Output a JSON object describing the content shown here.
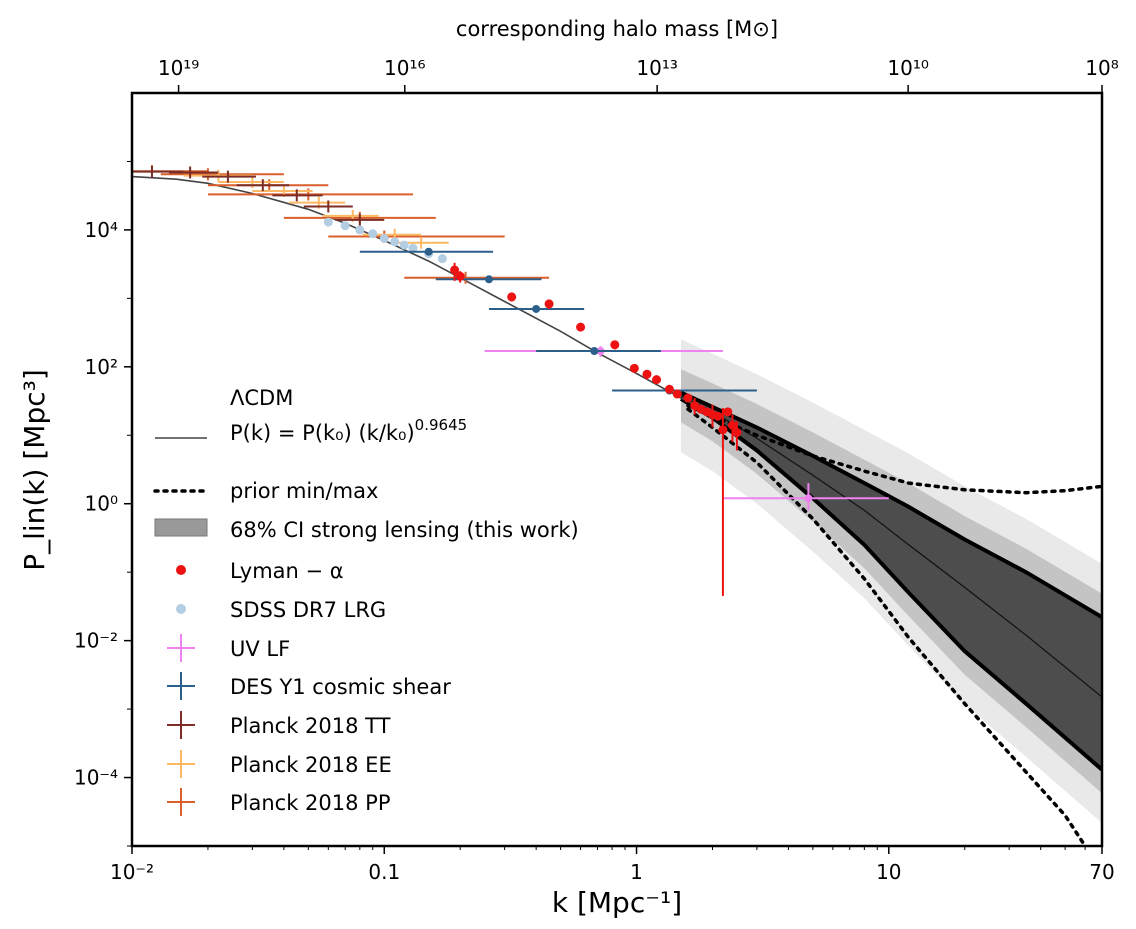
{
  "chart_data": {
    "type": "scatter",
    "title": "",
    "xlabel": "k [Mpc⁻¹]",
    "ylabel": "P_lin(k) [Mpc³]",
    "top_xlabel": "corresponding halo mass [M⊙]",
    "xscale": "log",
    "yscale": "log",
    "xlim": [
      0.01,
      70
    ],
    "ylim": [
      1e-05,
      1000000.0
    ],
    "x_ticks": [
      {
        "value": 0.01,
        "label": "10⁻²"
      },
      {
        "value": 0.1,
        "label": "0.1"
      },
      {
        "value": 1,
        "label": "1"
      },
      {
        "value": 10,
        "label": "10"
      },
      {
        "value": 70,
        "label": "70"
      }
    ],
    "y_ticks": [
      {
        "value": 0.0001,
        "label": "10⁻⁴"
      },
      {
        "value": 0.01,
        "label": "10⁻²"
      },
      {
        "value": 1,
        "label": "10⁰"
      },
      {
        "value": 100,
        "label": "10²"
      },
      {
        "value": 10000,
        "label": "10⁴"
      }
    ],
    "top_ticks": [
      {
        "k": 0.0153,
        "label": "10¹⁹"
      },
      {
        "k": 0.1206,
        "label": "10¹⁶"
      },
      {
        "k": 1.207,
        "label": "10¹³"
      },
      {
        "k": 11.93,
        "label": "10¹⁰"
      },
      {
        "k": 70,
        "label": "10⁸"
      }
    ],
    "lcdm_curve": {
      "x": [
        0.01,
        0.015,
        0.02,
        0.03,
        0.05,
        0.07,
        0.1,
        0.15,
        0.2,
        0.3,
        0.5,
        0.7,
        1.0,
        1.5,
        2.0
      ],
      "y": [
        60000,
        55000,
        48000,
        34000,
        20000,
        12500,
        7000,
        3500,
        2000,
        900,
        330,
        160,
        80,
        35,
        21
      ]
    },
    "prior_bounds": {
      "upper": {
        "x": [
          1.6,
          2.0,
          3.0,
          5.0,
          8.0,
          12.0,
          20.0,
          35.0,
          50.0,
          70.0
        ],
        "y": [
          27,
          19,
          10,
          5.0,
          3.0,
          2.0,
          1.6,
          1.45,
          1.55,
          1.8
        ]
      },
      "lower": {
        "x": [
          1.6,
          2.0,
          3.0,
          5.0,
          8.0,
          12.0,
          20.0,
          35.0,
          50.0,
          60.0
        ],
        "y": [
          24,
          13,
          4.0,
          0.6,
          0.08,
          0.011,
          0.0012,
          0.00012,
          2.8e-05,
          1e-05
        ]
      }
    },
    "strong_lensing": {
      "k": [
        1.5,
        2.0,
        3.0,
        5.0,
        8.0,
        12.0,
        20.0,
        35.0,
        70.0
      ],
      "median": [
        38,
        22,
        9.0,
        2.6,
        0.8,
        0.25,
        0.06,
        0.012,
        0.0015
      ],
      "ci68_low": [
        34,
        18,
        6.0,
        1.2,
        0.25,
        0.05,
        0.007,
        0.0012,
        0.00013
      ],
      "ci68_high": [
        42,
        26,
        13,
        5.0,
        2.0,
        0.9,
        0.3,
        0.1,
        0.022
      ]
    },
    "series": [
      {
        "name": "Lyman − α",
        "color": "#ee1111",
        "style": "dot",
        "points": [
          {
            "x": 0.19,
            "y": 2600,
            "ylo": 1800,
            "yhi": 3300
          },
          {
            "x": 0.2,
            "y": 2100,
            "ylo": 1700,
            "yhi": 2500
          },
          {
            "x": 0.32,
            "y": 1050,
            "ylo": 900,
            "yhi": 1200
          },
          {
            "x": 0.45,
            "y": 830,
            "ylo": 700,
            "yhi": 950
          },
          {
            "x": 0.6,
            "y": 380
          },
          {
            "x": 0.82,
            "y": 210,
            "ylo": 180,
            "yhi": 240
          },
          {
            "x": 0.98,
            "y": 95
          },
          {
            "x": 1.1,
            "y": 78,
            "ylo": 65,
            "yhi": 90
          },
          {
            "x": 1.2,
            "y": 65
          },
          {
            "x": 1.35,
            "y": 47
          },
          {
            "x": 1.45,
            "y": 40
          },
          {
            "x": 1.6,
            "y": 35
          },
          {
            "x": 1.7,
            "y": 27,
            "ylo": 20,
            "yhi": 35
          },
          {
            "x": 1.8,
            "y": 24
          },
          {
            "x": 1.9,
            "y": 22
          },
          {
            "x": 2.0,
            "y": 20,
            "ylo": 13,
            "yhi": 28
          },
          {
            "x": 2.1,
            "y": 19
          },
          {
            "x": 2.2,
            "y": 12,
            "ylo": 0.045,
            "yhi": 25
          },
          {
            "x": 2.3,
            "y": 22
          },
          {
            "x": 2.4,
            "y": 14,
            "ylo": 8,
            "yhi": 20
          },
          {
            "x": 2.5,
            "y": 11,
            "ylo": 6,
            "yhi": 16
          }
        ]
      },
      {
        "name": "SDSS DR7 LRG",
        "color": "#b3cde3",
        "style": "dot",
        "points": [
          {
            "x": 0.06,
            "y": 13000
          },
          {
            "x": 0.07,
            "y": 11500
          },
          {
            "x": 0.08,
            "y": 10000
          },
          {
            "x": 0.09,
            "y": 8800
          },
          {
            "x": 0.1,
            "y": 7500
          },
          {
            "x": 0.11,
            "y": 6700
          },
          {
            "x": 0.12,
            "y": 6000
          },
          {
            "x": 0.13,
            "y": 5400
          },
          {
            "x": 0.15,
            "y": 4500
          },
          {
            "x": 0.17,
            "y": 3800
          }
        ]
      },
      {
        "name": "UV LF",
        "color": "#ee82ee",
        "style": "cross",
        "points": [
          {
            "x": 0.72,
            "y": 170,
            "xlo": 0.25,
            "xhi": 2.2,
            "ylo": 140,
            "yhi": 200
          },
          {
            "x": 4.8,
            "y": 1.2,
            "xlo": 2.2,
            "xhi": 10,
            "ylo": 0.8,
            "yhi": 2.0
          }
        ]
      },
      {
        "name": "DES Y1 cosmic shear",
        "color": "#2c5f8a",
        "style": "cross-dot",
        "points": [
          {
            "x": 0.15,
            "y": 4800,
            "xlo": 0.08,
            "xhi": 0.27
          },
          {
            "x": 0.26,
            "y": 1900,
            "xlo": 0.16,
            "xhi": 0.42
          },
          {
            "x": 0.4,
            "y": 700,
            "xlo": 0.26,
            "xhi": 0.62
          },
          {
            "x": 0.68,
            "y": 170,
            "xlo": 0.4,
            "xhi": 1.25
          },
          {
            "x": 1.35,
            "y": 45,
            "xlo": 0.8,
            "xhi": 3.0
          }
        ]
      },
      {
        "name": "Planck 2018 TT",
        "color": "#7b2d26",
        "style": "cross",
        "points": [
          {
            "x": 0.012,
            "y": 71000,
            "xlo": 0.01,
            "xhi": 0.016
          },
          {
            "x": 0.017,
            "y": 69000,
            "xlo": 0.014,
            "xhi": 0.022
          },
          {
            "x": 0.024,
            "y": 60000,
            "xlo": 0.019,
            "xhi": 0.031
          },
          {
            "x": 0.033,
            "y": 45000,
            "xlo": 0.026,
            "xhi": 0.042
          },
          {
            "x": 0.045,
            "y": 32000,
            "xlo": 0.036,
            "xhi": 0.057
          },
          {
            "x": 0.06,
            "y": 22000,
            "xlo": 0.048,
            "xhi": 0.075
          },
          {
            "x": 0.08,
            "y": 14000,
            "xlo": 0.064,
            "xhi": 0.1
          }
        ]
      },
      {
        "name": "Planck 2018 EE",
        "color": "#fdb863",
        "style": "cross",
        "points": [
          {
            "x": 0.022,
            "y": 62000,
            "xlo": 0.016,
            "xhi": 0.03
          },
          {
            "x": 0.03,
            "y": 50000,
            "xlo": 0.022,
            "xhi": 0.04
          },
          {
            "x": 0.04,
            "y": 37000,
            "xlo": 0.03,
            "xhi": 0.052
          },
          {
            "x": 0.055,
            "y": 25000,
            "xlo": 0.042,
            "xhi": 0.07
          },
          {
            "x": 0.075,
            "y": 16000,
            "xlo": 0.057,
            "xhi": 0.095
          },
          {
            "x": 0.11,
            "y": 8500,
            "xlo": 0.082,
            "xhi": 0.14
          },
          {
            "x": 0.14,
            "y": 6500,
            "xlo": 0.11,
            "xhi": 0.18
          }
        ]
      },
      {
        "name": "Planck 2018 PP",
        "color": "#d95f2b",
        "style": "cross",
        "points": [
          {
            "x": 0.012,
            "y": 72000,
            "xlo": 0.01,
            "xhi": 0.02
          },
          {
            "x": 0.02,
            "y": 65000,
            "xlo": 0.013,
            "xhi": 0.04
          },
          {
            "x": 0.035,
            "y": 45000,
            "xlo": 0.02,
            "xhi": 0.06
          },
          {
            "x": 0.05,
            "y": 33000,
            "xlo": 0.02,
            "xhi": 0.13
          },
          {
            "x": 0.08,
            "y": 15000,
            "xlo": 0.04,
            "xhi": 0.16
          },
          {
            "x": 0.1,
            "y": 8000,
            "xlo": 0.06,
            "xhi": 0.3
          },
          {
            "x": 0.21,
            "y": 2000,
            "xlo": 0.12,
            "xhi": 0.45
          }
        ]
      }
    ],
    "legend": {
      "position": "left",
      "lcdm_title": "ΛCDM",
      "entries": [
        {
          "label": "P(k) = P(k₀) (k/k₀)",
          "exponent": "0.9645",
          "kind": "line"
        },
        {
          "label": "prior min/max",
          "kind": "dotted"
        },
        {
          "label": "68% CI strong lensing (this work)",
          "kind": "band"
        },
        {
          "label": "Lyman − α",
          "kind": "dot",
          "color": "#ee1111"
        },
        {
          "label": "SDSS DR7 LRG",
          "kind": "dot",
          "color": "#b3cde3"
        },
        {
          "label": "UV LF",
          "kind": "cross",
          "color": "#ee82ee"
        },
        {
          "label": "DES Y1 cosmic shear",
          "kind": "cross",
          "color": "#2c5f8a"
        },
        {
          "label": "Planck 2018 TT",
          "kind": "cross",
          "color": "#7b2d26"
        },
        {
          "label": "Planck 2018 EE",
          "kind": "cross",
          "color": "#fdb863"
        },
        {
          "label": "Planck 2018 PP",
          "kind": "cross",
          "color": "#d95f2b"
        }
      ]
    }
  }
}
